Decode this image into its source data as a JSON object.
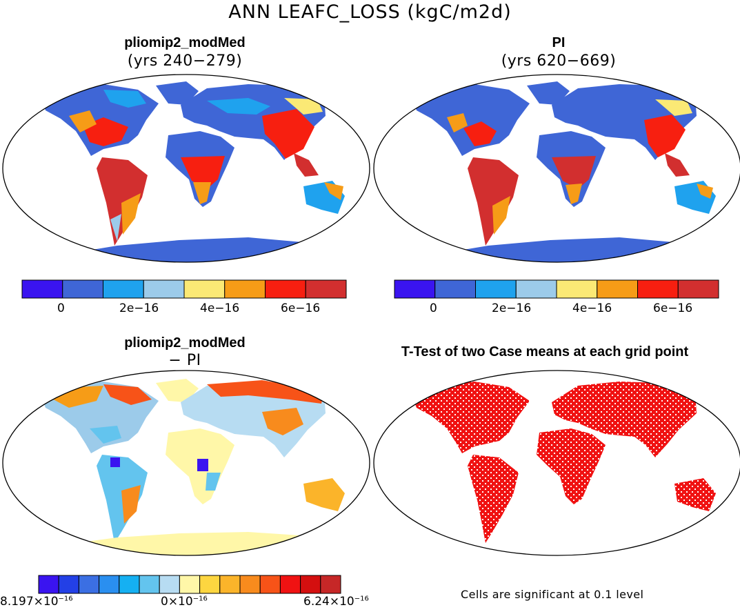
{
  "figure": {
    "title": "ANN LEAFC_LOSS (kgC/m2d)"
  },
  "panels": {
    "top_left": {
      "title": "pliomip2_modMed",
      "subtitle": "(yrs 240−279)"
    },
    "top_right": {
      "title": "PI",
      "subtitle": "(yrs 620−669)"
    },
    "bottom_left": {
      "title": "pliomip2_modMed",
      "subtitle": "− PI"
    },
    "bottom_right": {
      "title": "T-Test of two Case means at each grid point",
      "note": "Cells are significant at 0.1 level"
    }
  },
  "colorbars": {
    "abs": {
      "colors": [
        "#3a14f0",
        "#3f66d6",
        "#1fa2ee",
        "#9ccbea",
        "#fbe975",
        "#f69c17",
        "#f71f10",
        "#d22f2f"
      ],
      "ticks": [
        "0",
        "2e−16",
        "4e−16",
        "6e−16"
      ]
    },
    "diff": {
      "colors": [
        "#3a14f0",
        "#2340e6",
        "#3b6fe3",
        "#2a8ff0",
        "#15b0f2",
        "#63c4ee",
        "#b7dcf2",
        "#fff7a8",
        "#fdd640",
        "#fbb42a",
        "#f88b1d",
        "#f75318",
        "#f01212",
        "#d40f0f",
        "#c62727"
      ],
      "label_left": {
        "mantissa": "8.197×10",
        "exp": "−16"
      },
      "label_mid": {
        "mantissa": "0×10",
        "exp": "−16"
      },
      "label_right": {
        "mantissa": "6.24×10",
        "exp": "−16"
      }
    }
  }
}
